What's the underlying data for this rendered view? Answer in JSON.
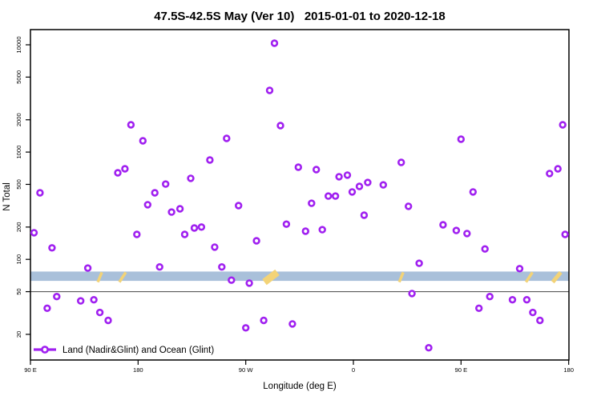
{
  "header": {
    "title": "47.5S-42.5S May (Ver 10)   2015-01-01 to 2020-12-18"
  },
  "legend": {
    "label": "Land (Nadir&Glint) and Ocean (Glint)"
  },
  "colors": {
    "marker": "#A020F0",
    "marker_fill": "#ffffff",
    "band": "#a9c0da",
    "gold": "#f3d377",
    "reference_line": "#5a5a5a",
    "axis": "#000000"
  },
  "chart_data": {
    "type": "scatter",
    "title": "47.5S-42.5S May (Ver 10)   2015-01-01 to 2020-12-18",
    "xlabel": "Longitude (deg E)",
    "ylabel": "N Total",
    "x_axis_note": "longitude axis runs 90E eastward through 180, 90W, 0, 90E to 180 (stored as 90..540 deg)",
    "y_scale": "log",
    "ylim": [
      10.6,
      13600
    ],
    "grid": false,
    "legend_position": "bottom-left-inside",
    "x_ticks": [
      {
        "deg": 90,
        "label": "90 E"
      },
      {
        "deg": 180,
        "label": "180"
      },
      {
        "deg": 270,
        "label": "90 W"
      },
      {
        "deg": 360,
        "label": "0"
      },
      {
        "deg": 450,
        "label": "90 E"
      },
      {
        "deg": 540,
        "label": "180"
      }
    ],
    "y_ticks": [
      20,
      50,
      100,
      200,
      500,
      1000,
      2000,
      5000,
      10000
    ],
    "reference_line": {
      "value": 50
    },
    "band": {
      "value_from": 63,
      "value_to": 77
    },
    "gold_marks": [
      {
        "deg": 148,
        "size": "tiny"
      },
      {
        "deg": 167,
        "size": "small"
      },
      {
        "deg": 291,
        "size": "large"
      },
      {
        "deg": 400,
        "size": "tiny"
      },
      {
        "deg": 507,
        "size": "small"
      },
      {
        "deg": 530,
        "size": "medium"
      }
    ],
    "points": [
      [
        98,
        417
      ],
      [
        93,
        177
      ],
      [
        108,
        128
      ],
      [
        104,
        35
      ],
      [
        112,
        45
      ],
      [
        132,
        41
      ],
      [
        143,
        42
      ],
      [
        138,
        83
      ],
      [
        148,
        32
      ],
      [
        155,
        27
      ],
      [
        163,
        641
      ],
      [
        169,
        698
      ],
      [
        174,
        1795
      ],
      [
        179,
        171
      ],
      [
        184,
        1274
      ],
      [
        188,
        323
      ],
      [
        194,
        417
      ],
      [
        198,
        85
      ],
      [
        203,
        503
      ],
      [
        208,
        276
      ],
      [
        215,
        296
      ],
      [
        219,
        171
      ],
      [
        224,
        569
      ],
      [
        227,
        196
      ],
      [
        233,
        200
      ],
      [
        240,
        843
      ],
      [
        244,
        130
      ],
      [
        250,
        85
      ],
      [
        254,
        1342
      ],
      [
        258,
        64
      ],
      [
        264,
        317
      ],
      [
        270,
        23
      ],
      [
        273,
        60
      ],
      [
        279,
        149
      ],
      [
        285,
        27
      ],
      [
        290,
        3760
      ],
      [
        294,
        10350
      ],
      [
        299,
        1766
      ],
      [
        304,
        213
      ],
      [
        309,
        25
      ],
      [
        314,
        723
      ],
      [
        320,
        183
      ],
      [
        325,
        333
      ],
      [
        329,
        687
      ],
      [
        334,
        189
      ],
      [
        339,
        389
      ],
      [
        345,
        389
      ],
      [
        348,
        589
      ],
      [
        355,
        610
      ],
      [
        359,
        425
      ],
      [
        365,
        479
      ],
      [
        369,
        258
      ],
      [
        372,
        521
      ],
      [
        385,
        495
      ],
      [
        400,
        802
      ],
      [
        406,
        312
      ],
      [
        409,
        48
      ],
      [
        415,
        92
      ],
      [
        423,
        15
      ],
      [
        435,
        210
      ],
      [
        446,
        186
      ],
      [
        450,
        1318
      ],
      [
        455,
        174
      ],
      [
        460,
        425
      ],
      [
        465,
        35
      ],
      [
        470,
        125
      ],
      [
        474,
        45
      ],
      [
        493,
        42
      ],
      [
        499,
        82
      ],
      [
        505,
        42
      ],
      [
        510,
        32
      ],
      [
        516,
        27
      ],
      [
        524,
        631
      ],
      [
        531,
        698
      ],
      [
        535,
        1795
      ],
      [
        537,
        171
      ]
    ]
  }
}
